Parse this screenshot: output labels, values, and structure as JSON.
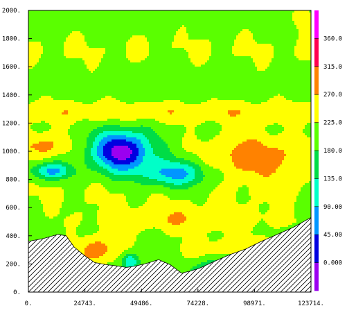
{
  "chart_data": {
    "type": "heatmap",
    "title": "",
    "xlabel": "",
    "ylabel": "",
    "x_ticks": [
      "0.",
      "24743.",
      "49486.",
      "74228.",
      "98971.",
      "123714."
    ],
    "x_tick_values": [
      0,
      24743,
      49486,
      74228,
      98971,
      123714
    ],
    "y_ticks": [
      "0.",
      "200.",
      "400.",
      "600.",
      "800.",
      "1000.",
      "1200.",
      "1400.",
      "1600.",
      "1800.",
      "2000."
    ],
    "y_tick_values": [
      0,
      200,
      400,
      600,
      800,
      1000,
      1200,
      1400,
      1600,
      1800,
      2000
    ],
    "xlim": [
      0,
      123714
    ],
    "ylim": [
      0,
      2000
    ],
    "colorbar": {
      "labels": [
        "0.000",
        "45.00",
        "90.00",
        "135.0",
        "180.0",
        "225.0",
        "270.0",
        "315.0",
        "360.0"
      ],
      "levels": [
        0,
        45,
        90,
        135,
        180,
        225,
        270,
        315,
        360
      ],
      "colors": [
        "#9b00f0",
        "#0000e0",
        "#0096ff",
        "#00ffc8",
        "#00dc46",
        "#5aff00",
        "#ffff00",
        "#ff8200",
        "#ff0050",
        "#ff00ff"
      ]
    },
    "terrain_profile": {
      "x": [
        0,
        6500,
        13000,
        16500,
        20000,
        24500,
        29000,
        34000,
        39000,
        43000,
        47000,
        52000,
        57000,
        62000,
        67000,
        71000,
        75000,
        81000,
        88000,
        95000,
        102000,
        109000,
        116000,
        123714
      ],
      "y": [
        360,
        380,
        410,
        400,
        320,
        260,
        210,
        195,
        185,
        175,
        185,
        205,
        230,
        195,
        135,
        150,
        170,
        215,
        265,
        305,
        360,
        410,
        460,
        530
      ]
    }
  }
}
